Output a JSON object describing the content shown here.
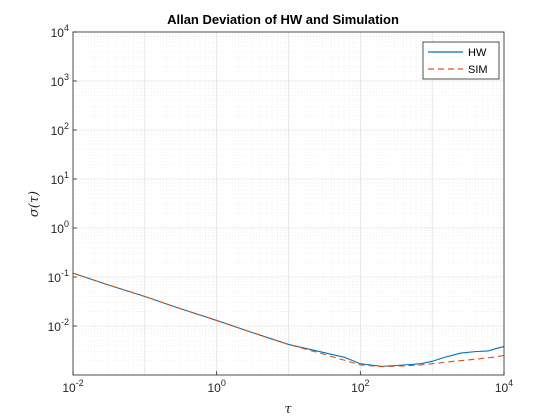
{
  "chart_data": {
    "type": "line",
    "title": "Allan Deviation of HW and Simulation",
    "xlabel": "τ",
    "ylabel": "σ(τ)",
    "xscale": "log",
    "yscale": "log",
    "xlim": [
      0.01,
      10000
    ],
    "ylim": [
      0.001,
      10000
    ],
    "grid": true,
    "minor_grid": true,
    "legend_position": "top-right",
    "x_ticks": [
      {
        "value": 0.01,
        "base": "10",
        "exp": "-2"
      },
      {
        "value": 1,
        "base": "10",
        "exp": "0"
      },
      {
        "value": 100,
        "base": "10",
        "exp": "2"
      },
      {
        "value": 10000,
        "base": "10",
        "exp": "4"
      }
    ],
    "y_ticks": [
      {
        "value": 0.01,
        "base": "10",
        "exp": "-2"
      },
      {
        "value": 0.1,
        "base": "10",
        "exp": "-1"
      },
      {
        "value": 1,
        "base": "10",
        "exp": "0"
      },
      {
        "value": 10,
        "base": "10",
        "exp": "1"
      },
      {
        "value": 100,
        "base": "10",
        "exp": "2"
      },
      {
        "value": 1000,
        "base": "10",
        "exp": "3"
      },
      {
        "value": 10000,
        "base": "10",
        "exp": "4"
      }
    ],
    "series": [
      {
        "name": "HW",
        "color": "#0072BD",
        "style": "solid",
        "points": [
          [
            0.01,
            0.12
          ],
          [
            0.03,
            0.07
          ],
          [
            0.1,
            0.04
          ],
          [
            0.3,
            0.023
          ],
          [
            1,
            0.013
          ],
          [
            3,
            0.0075
          ],
          [
            10,
            0.0042
          ],
          [
            30,
            0.0029
          ],
          [
            60,
            0.0023
          ],
          [
            100,
            0.0017
          ],
          [
            200,
            0.0015
          ],
          [
            400,
            0.0016
          ],
          [
            700,
            0.0017
          ],
          [
            1000,
            0.0019
          ],
          [
            1500,
            0.0023
          ],
          [
            2500,
            0.0028
          ],
          [
            4000,
            0.003
          ],
          [
            6000,
            0.0031
          ],
          [
            8000,
            0.0035
          ],
          [
            10000,
            0.0038
          ]
        ]
      },
      {
        "name": "SIM",
        "color": "#D95319",
        "style": "dashed",
        "points": [
          [
            0.01,
            0.12
          ],
          [
            0.03,
            0.07
          ],
          [
            0.1,
            0.04
          ],
          [
            0.3,
            0.023
          ],
          [
            1,
            0.013
          ],
          [
            3,
            0.0075
          ],
          [
            10,
            0.0042
          ],
          [
            30,
            0.0027
          ],
          [
            60,
            0.002
          ],
          [
            100,
            0.0016
          ],
          [
            200,
            0.00148
          ],
          [
            400,
            0.00153
          ],
          [
            700,
            0.0016
          ],
          [
            1000,
            0.0017
          ],
          [
            2000,
            0.0019
          ],
          [
            4000,
            0.0021
          ],
          [
            7000,
            0.0023
          ],
          [
            10000,
            0.0025
          ]
        ]
      }
    ]
  }
}
